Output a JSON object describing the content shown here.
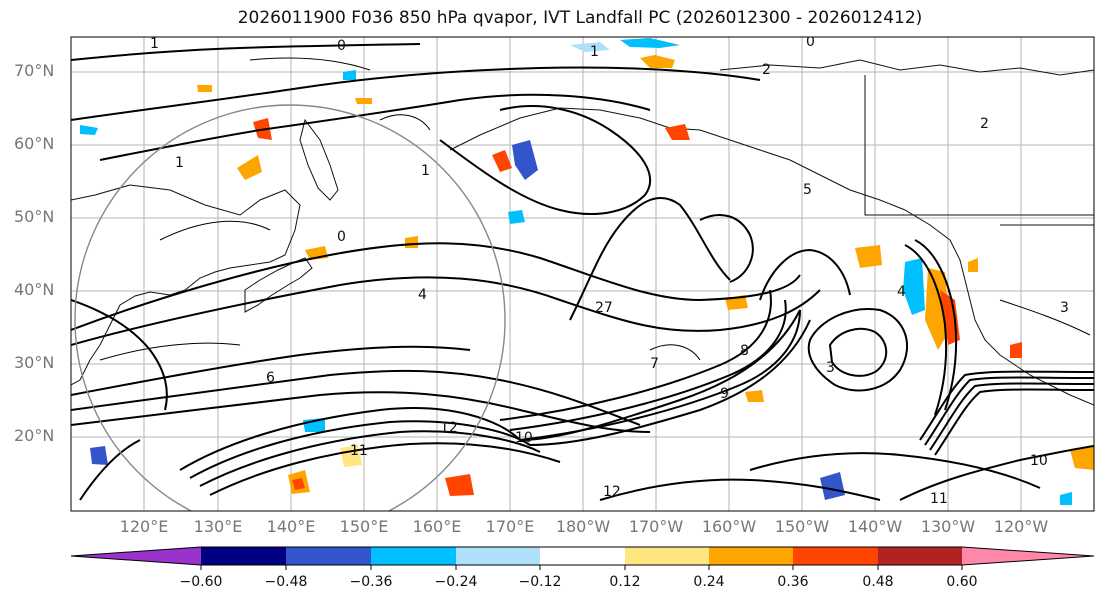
{
  "title": "2026011900 F036 850 hPa qvapor, IVT Landfall PC (2026012300 - 2026012412)",
  "lat_labels": [
    "70°N",
    "60°N",
    "50°N",
    "40°N",
    "30°N",
    "20°N"
  ],
  "lon_labels": [
    "120°E",
    "130°E",
    "140°E",
    "150°E",
    "160°E",
    "170°E",
    "180°W",
    "170°W",
    "160°W",
    "150°W",
    "140°W",
    "130°W",
    "120°W"
  ],
  "contour_labels": [
    "1",
    "0",
    "1",
    "0",
    "2",
    "1",
    "1",
    "0",
    "2",
    "5",
    "4",
    "27",
    "6",
    "7",
    "8",
    "3",
    "9",
    "12",
    "10",
    "11",
    "12",
    "11",
    "10",
    "4",
    "3"
  ],
  "colorbar": {
    "ticks": [
      "−0.60",
      "−0.48",
      "−0.36",
      "−0.24",
      "−0.12",
      "0.12",
      "0.24",
      "0.36",
      "0.48",
      "0.60"
    ],
    "colors": [
      "#9933cc",
      "#000080",
      "#3355cc",
      "#00bfff",
      "#aee0fa",
      "#ffffff",
      "#ffe680",
      "#ffa500",
      "#ff4500",
      "#b22222",
      "#ff88aa"
    ]
  }
}
